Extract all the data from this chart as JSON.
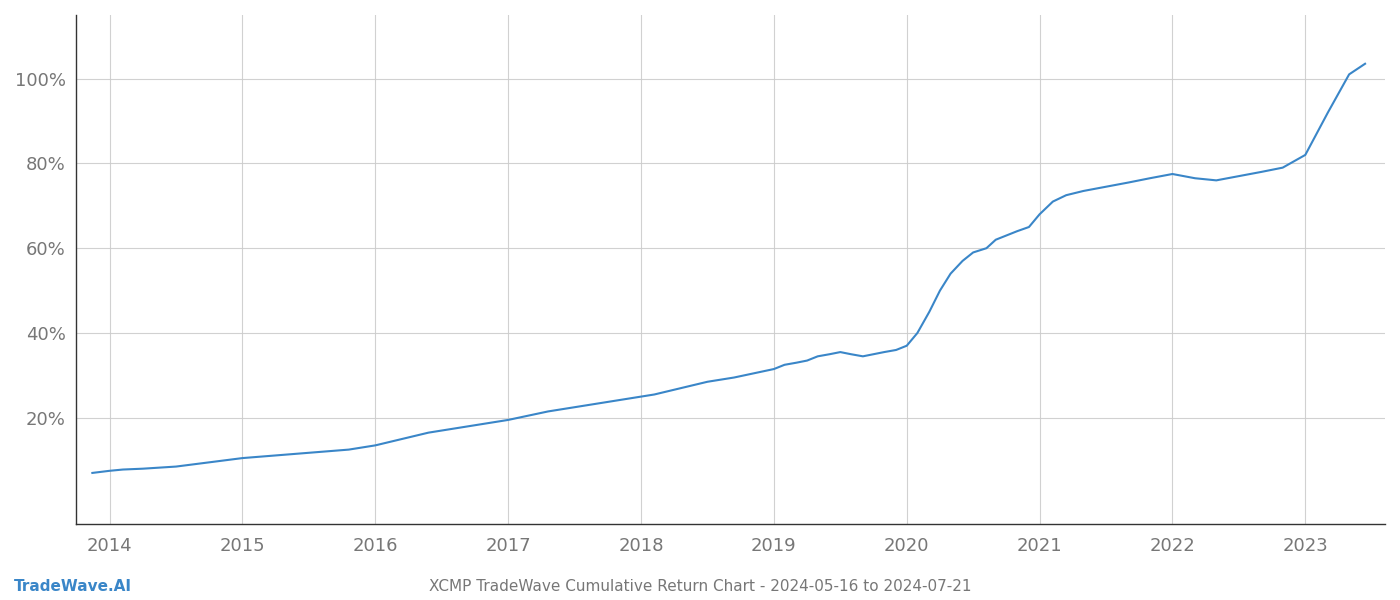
{
  "title": "XCMP TradeWave Cumulative Return Chart - 2024-05-16 to 2024-07-21",
  "watermark": "TradeWave.AI",
  "line_color": "#3a86c8",
  "line_width": 1.5,
  "background_color": "#ffffff",
  "grid_color": "#cccccc",
  "x_values": [
    2013.87,
    2014.0,
    2014.1,
    2014.25,
    2014.5,
    2014.75,
    2015.0,
    2015.2,
    2015.4,
    2015.6,
    2015.8,
    2016.0,
    2016.2,
    2016.4,
    2016.6,
    2016.8,
    2017.0,
    2017.15,
    2017.3,
    2017.5,
    2017.7,
    2017.9,
    2018.1,
    2018.3,
    2018.5,
    2018.7,
    2018.85,
    2019.0,
    2019.08,
    2019.17,
    2019.25,
    2019.33,
    2019.42,
    2019.5,
    2019.58,
    2019.67,
    2019.75,
    2019.83,
    2019.92,
    2020.0,
    2020.08,
    2020.17,
    2020.25,
    2020.33,
    2020.42,
    2020.5,
    2020.6,
    2020.67,
    2020.75,
    2020.83,
    2020.92,
    2021.0,
    2021.1,
    2021.2,
    2021.33,
    2021.5,
    2021.67,
    2021.83,
    2022.0,
    2022.17,
    2022.33,
    2022.5,
    2022.67,
    2022.83,
    2023.0,
    2023.17,
    2023.33,
    2023.45
  ],
  "y_values": [
    7,
    7.5,
    7.8,
    8.0,
    8.5,
    9.5,
    10.5,
    11.0,
    11.5,
    12.0,
    12.5,
    13.5,
    15.0,
    16.5,
    17.5,
    18.5,
    19.5,
    20.5,
    21.5,
    22.5,
    23.5,
    24.5,
    25.5,
    27.0,
    28.5,
    29.5,
    30.5,
    31.5,
    32.5,
    33.0,
    33.5,
    34.5,
    35.0,
    35.5,
    35.0,
    34.5,
    35.0,
    35.5,
    36.0,
    37.0,
    40.0,
    45.0,
    50.0,
    54.0,
    57.0,
    59.0,
    60.0,
    62.0,
    63.0,
    64.0,
    65.0,
    68.0,
    71.0,
    72.5,
    73.5,
    74.5,
    75.5,
    76.5,
    77.5,
    76.5,
    76.0,
    77.0,
    78.0,
    79.0,
    82.0,
    92.0,
    101.0,
    103.5
  ],
  "xlim": [
    2013.75,
    2023.6
  ],
  "ylim": [
    -5,
    115
  ],
  "yticks": [
    20,
    40,
    60,
    80,
    100
  ],
  "xticks": [
    2014,
    2015,
    2016,
    2017,
    2018,
    2019,
    2020,
    2021,
    2022,
    2023
  ],
  "tick_label_color": "#777777",
  "tick_fontsize": 13,
  "title_fontsize": 11,
  "watermark_fontsize": 11
}
